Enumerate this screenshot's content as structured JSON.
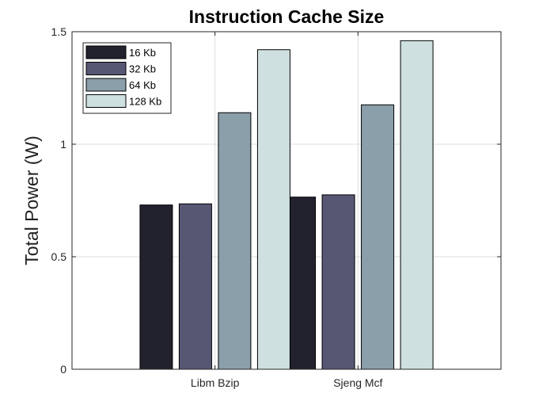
{
  "chart_data": {
    "type": "bar",
    "title": "Instruction Cache Size",
    "xlabel": "",
    "ylabel": "Total Power (W)",
    "categories": [
      "Libm Bzip",
      "Sjeng Mcf"
    ],
    "series": [
      {
        "name": "16 Kb",
        "color": "#21222e",
        "values": [
          0.73,
          0.765
        ]
      },
      {
        "name": "32 Kb",
        "color": "#575774",
        "values": [
          0.735,
          0.775
        ]
      },
      {
        "name": "64 Kb",
        "color": "#8a9fa9",
        "values": [
          1.14,
          1.175
        ]
      },
      {
        "name": "128 Kb",
        "color": "#cfe0e0",
        "values": [
          1.42,
          1.46
        ]
      }
    ],
    "ylim": [
      0,
      1.5
    ],
    "yticks": [
      "0",
      "0.5",
      "1",
      "1.5"
    ],
    "grid": true,
    "legend": "top-left"
  }
}
